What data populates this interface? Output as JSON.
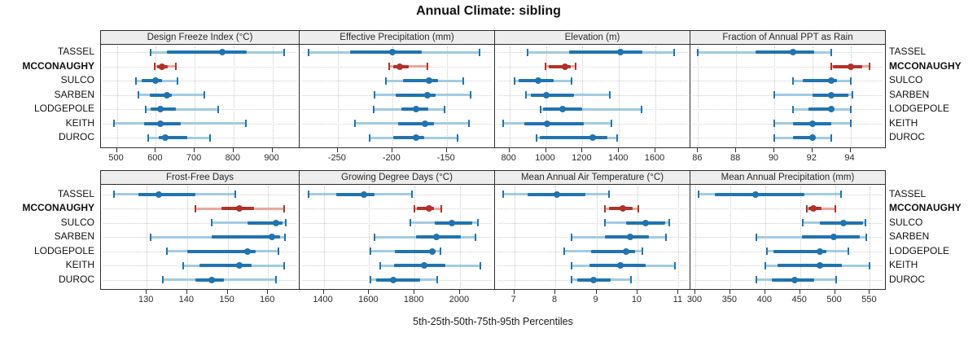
{
  "title": "Annual Climate: sibling",
  "caption": "5th-25th-50th-75th-95th Percentiles",
  "categories": [
    "TASSEL",
    "MCCONAUGHY",
    "SULCO",
    "SARBEN",
    "LODGEPOLE",
    "KEITH",
    "DUROC"
  ],
  "highlight": "MCCONAUGHY",
  "colors": {
    "dark_blue": "#2173b0",
    "light_blue": "#a3cbe1",
    "highlight_dark": "#b23128",
    "highlight_light": "#e9a79f",
    "grid": "#c9c9c9",
    "panel_border": "#2f2f2f",
    "header_bg": "#ededed"
  },
  "chart_data": {
    "type": "dotplot-percentile-intervals",
    "layout": "2-row by 4-column trellis; thin whisker = 5th-95th, thick bar = 25th-75th, dot = 50th percentile",
    "legend_note": "5th-25th-50th-75th-95th Percentiles",
    "panels": [
      {
        "title": "Design Freeze Index (°C)",
        "xlim": [
          459,
          972
        ],
        "ticks": [
          500,
          600,
          700,
          800,
          900
        ],
        "rows": [
          {
            "name": "TASSEL",
            "p": [
              586,
              628,
              772,
              834,
              930
            ]
          },
          {
            "name": "MCCONAUGHY",
            "p": [
              597,
              603,
              616,
              630,
              651
            ]
          },
          {
            "name": "SULCO",
            "p": [
              548,
              564,
              600,
              617,
              655
            ]
          },
          {
            "name": "SARBEN",
            "p": [
              556,
              584,
              628,
              641,
              724
            ]
          },
          {
            "name": "LODGEPOLE",
            "p": [
              575,
              587,
              612,
              651,
              760
            ]
          },
          {
            "name": "KEITH",
            "p": [
              492,
              570,
              612,
              665,
              831
            ]
          },
          {
            "name": "DUROC",
            "p": [
              580,
              607,
              624,
              682,
              740
            ]
          }
        ]
      },
      {
        "title": "Effective Precipitation (mm)",
        "xlim": [
          -285,
          -105
        ],
        "ticks": [
          -250,
          -200,
          -150
        ],
        "rows": [
          {
            "name": "TASSEL",
            "p": [
              -277,
              -239,
              -200,
              -173,
              -120
            ]
          },
          {
            "name": "MCCONAUGHY",
            "p": [
              -203,
              -199,
              -193,
              -185,
              -168
            ]
          },
          {
            "name": "SULCO",
            "p": [
              -206,
              -190,
              -166,
              -158,
              -135
            ]
          },
          {
            "name": "SARBEN",
            "p": [
              -216,
              -197,
              -168,
              -160,
              -128
            ]
          },
          {
            "name": "LODGEPOLE",
            "p": [
              -217,
              -192,
              -178,
              -167,
              -152
            ]
          },
          {
            "name": "KEITH",
            "p": [
              -234,
              -195,
              -170,
              -162,
              -130
            ]
          },
          {
            "name": "DUROC",
            "p": [
              -221,
              -199,
              -178,
              -171,
              -140
            ]
          }
        ]
      },
      {
        "title": "Elevation (m)",
        "xlim": [
          721,
          1796
        ],
        "ticks": [
          800,
          1000,
          1200,
          1400,
          1600
        ],
        "rows": [
          {
            "name": "TASSEL",
            "p": [
              900,
              1125,
              1410,
              1528,
              1704
            ]
          },
          {
            "name": "MCCONAUGHY",
            "p": [
              996,
              1014,
              1103,
              1136,
              1163
            ]
          },
          {
            "name": "SULCO",
            "p": [
              827,
              850,
              958,
              1043,
              1140
            ]
          },
          {
            "name": "SARBEN",
            "p": [
              890,
              916,
              1000,
              1152,
              1352
            ]
          },
          {
            "name": "LODGEPOLE",
            "p": [
              973,
              984,
              1091,
              1200,
              1525
            ]
          },
          {
            "name": "KEITH",
            "p": [
              767,
              880,
              1006,
              1207,
              1357
            ]
          },
          {
            "name": "DUROC",
            "p": [
              950,
              968,
              1255,
              1335,
              1390
            ]
          }
        ]
      },
      {
        "title": "Fraction of Annual PPT as Rain",
        "xlim": [
          85.6,
          95.9
        ],
        "ticks": [
          86,
          88,
          90,
          92,
          94
        ],
        "rows": [
          {
            "name": "TASSEL",
            "p": [
              86,
              89,
              91,
              92.1,
              93
            ]
          },
          {
            "name": "MCCONAUGHY",
            "p": [
              93,
              93.1,
              94,
              94.6,
              95
            ]
          },
          {
            "name": "SULCO",
            "p": [
              91,
              91.5,
              93,
              93.3,
              94
            ]
          },
          {
            "name": "SARBEN",
            "p": [
              90,
              92,
              93,
              93.9,
              94.1
            ]
          },
          {
            "name": "LODGEPOLE",
            "p": [
              91,
              91.8,
              93,
              93.1,
              94
            ]
          },
          {
            "name": "KEITH",
            "p": [
              90,
              91,
              92,
              93,
              94
            ]
          },
          {
            "name": "DUROC",
            "p": [
              90,
              91,
              92,
              92.1,
              93
            ]
          }
        ]
      },
      {
        "title": "Frost-Free Days",
        "xlim": [
          118.7,
          168
        ],
        "ticks": [
          130,
          140,
          150,
          160
        ],
        "rows": [
          {
            "name": "TASSEL",
            "p": [
              122,
              128,
              133,
              142,
              152
            ]
          },
          {
            "name": "MCCONAUGHY",
            "p": [
              142,
              148.5,
              153,
              156.5,
              164
            ]
          },
          {
            "name": "SULCO",
            "p": [
              146,
              155,
              162,
              163.6,
              164.4
            ]
          },
          {
            "name": "SARBEN",
            "p": [
              131,
              146,
              161,
              162.9,
              164.2
            ]
          },
          {
            "name": "LODGEPOLE",
            "p": [
              135,
              140,
              155,
              157,
              162.5
            ]
          },
          {
            "name": "KEITH",
            "p": [
              139,
              143,
              153,
              156,
              164
            ]
          },
          {
            "name": "DUROC",
            "p": [
              134,
              142,
              146,
              149,
              162
            ]
          }
        ]
      },
      {
        "title": "Growing Degree Days (°C)",
        "xlim": [
          1294,
          2158
        ],
        "ticks": [
          1400,
          1600,
          1800,
          2000
        ],
        "rows": [
          {
            "name": "TASSEL",
            "p": [
              1332,
              1457,
              1577,
              1623,
              1787
            ]
          },
          {
            "name": "MCCONAUGHY",
            "p": [
              1801,
              1811,
              1865,
              1885,
              1919
            ]
          },
          {
            "name": "SULCO",
            "p": [
              1781,
              1889,
              1966,
              2053,
              2080
            ]
          },
          {
            "name": "SARBEN",
            "p": [
              1625,
              1807,
              1898,
              2003,
              2068
            ]
          },
          {
            "name": "LODGEPOLE",
            "p": [
              1605,
              1715,
              1880,
              1892,
              1913
            ]
          },
          {
            "name": "KEITH",
            "p": [
              1649,
              1709,
              1843,
              1937,
              2089
            ]
          },
          {
            "name": "DUROC",
            "p": [
              1607,
              1631,
              1705,
              1823,
              1901
            ]
          }
        ]
      },
      {
        "title": "Mean Annual Air Temperature (°C)",
        "xlim": [
          6.53,
          11.31
        ],
        "ticks": [
          7,
          8,
          9,
          10,
          11
        ],
        "rows": [
          {
            "name": "TASSEL",
            "p": [
              6.73,
              7.33,
              8.03,
              8.73,
              9.3
            ]
          },
          {
            "name": "MCCONAUGHY",
            "p": [
              9.2,
              9.3,
              9.65,
              9.88,
              10.02
            ]
          },
          {
            "name": "SULCO",
            "p": [
              9.2,
              9.73,
              10.19,
              10.68,
              10.77
            ]
          },
          {
            "name": "SARBEN",
            "p": [
              8.4,
              9.2,
              9.82,
              10.27,
              10.7
            ]
          },
          {
            "name": "LODGEPOLE",
            "p": [
              8.21,
              8.87,
              9.73,
              9.95,
              10.12
            ]
          },
          {
            "name": "KEITH",
            "p": [
              8.4,
              8.83,
              9.58,
              10.2,
              10.92
            ]
          },
          {
            "name": "DUROC",
            "p": [
              8.39,
              8.53,
              8.92,
              9.35,
              9.85
            ]
          }
        ]
      },
      {
        "title": "Mean Annual Precipitation (mm)",
        "xlim": [
          293,
          574
        ],
        "ticks": [
          300,
          350,
          400,
          450,
          500,
          550
        ],
        "rows": [
          {
            "name": "TASSEL",
            "p": [
              305,
              328,
              386,
              456,
              509
            ]
          },
          {
            "name": "MCCONAUGHY",
            "p": [
              460,
              462,
              469,
              481,
              500
            ]
          },
          {
            "name": "SULCO",
            "p": [
              454,
              478,
              512,
              540,
              544
            ]
          },
          {
            "name": "SARBEN",
            "p": [
              387,
              453,
              498,
              536,
              545
            ]
          },
          {
            "name": "LODGEPOLE",
            "p": [
              403,
              412,
              478,
              488,
              519
            ]
          },
          {
            "name": "KEITH",
            "p": [
              400,
              418,
              478,
              510,
              550
            ]
          },
          {
            "name": "DUROC",
            "p": [
              388,
              410,
              442,
              470,
              502
            ]
          }
        ]
      }
    ]
  }
}
